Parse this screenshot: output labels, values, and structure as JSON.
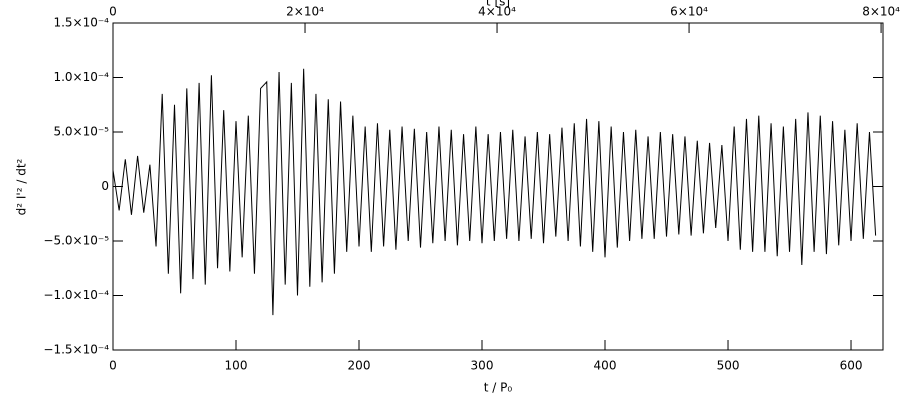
{
  "chart_data": {
    "type": "line",
    "color": "#000000",
    "x_label": "t / P₀",
    "y_label": "d² I'² / dt²",
    "x2_label": "t [s]",
    "xlim": [
      0,
      626
    ],
    "xticks": [
      0,
      100,
      200,
      300,
      400,
      500,
      600
    ],
    "x2lim": [
      0,
      80200
    ],
    "x2ticks": [
      0,
      {
        "value": 20000,
        "label": "2×10⁴"
      },
      {
        "value": 40000,
        "label": "4×10⁴"
      },
      {
        "value": 60000,
        "label": "6×10⁴"
      },
      {
        "value": 80000,
        "label": "8×10⁴"
      }
    ],
    "ylim": [
      -0.00015,
      0.00015
    ],
    "yticks": [
      {
        "value": -0.00015,
        "label": "−1.5×10⁻⁴"
      },
      {
        "value": -0.0001,
        "label": "−1.0×10⁻⁴"
      },
      {
        "value": -5e-05,
        "label": "−5.0×10⁻⁵"
      },
      0,
      {
        "value": 5e-05,
        "label": "5.0×10⁻⁵"
      },
      {
        "value": 0.0001,
        "label": "1.0×10⁻⁴"
      },
      {
        "value": 0.00015,
        "label": "1.5×10⁻⁴"
      }
    ],
    "x": [
      0,
      5,
      10,
      15,
      20,
      25,
      30,
      35,
      40,
      45,
      50,
      55,
      60,
      65,
      70,
      75,
      80,
      85,
      90,
      95,
      100,
      105,
      110,
      115,
      120,
      125,
      130,
      135,
      140,
      145,
      150,
      155,
      160,
      165,
      170,
      175,
      180,
      185,
      190,
      195,
      200,
      205,
      210,
      215,
      220,
      225,
      230,
      235,
      240,
      245,
      250,
      255,
      260,
      265,
      270,
      275,
      280,
      285,
      290,
      295,
      300,
      305,
      310,
      315,
      320,
      325,
      330,
      335,
      340,
      345,
      350,
      355,
      360,
      365,
      370,
      375,
      380,
      385,
      390,
      395,
      400,
      405,
      410,
      415,
      420,
      425,
      430,
      435,
      440,
      445,
      450,
      455,
      460,
      465,
      470,
      475,
      480,
      485,
      490,
      495,
      500,
      505,
      510,
      515,
      520,
      525,
      530,
      535,
      540,
      545,
      550,
      555,
      560,
      565,
      570,
      575,
      580,
      585,
      590,
      595,
      600,
      605,
      610,
      615,
      620
    ],
    "values": [
      1.5e-05,
      -2.2e-05,
      2.5e-05,
      -2.6e-05,
      2.8e-05,
      -2.4e-05,
      2e-05,
      -5.5e-05,
      8.5e-05,
      -8e-05,
      7.5e-05,
      -9.8e-05,
      9e-05,
      -8.5e-05,
      9.5e-05,
      -9e-05,
      0.000102,
      -7.5e-05,
      7e-05,
      -7.8e-05,
      6e-05,
      -6.5e-05,
      6.5e-05,
      -8e-05,
      9e-05,
      9.6e-05,
      -0.000118,
      0.000105,
      -9e-05,
      9.5e-05,
      -0.0001,
      0.000108,
      -9.2e-05,
      8.5e-05,
      -8.8e-05,
      8e-05,
      -8e-05,
      7.8e-05,
      -6e-05,
      6.5e-05,
      -5.5e-05,
      5.5e-05,
      -6e-05,
      5.8e-05,
      -5.5e-05,
      5.2e-05,
      -5.8e-05,
      5.5e-05,
      -5e-05,
      5.3e-05,
      -5.6e-05,
      5e-05,
      -5.2e-05,
      5.5e-05,
      -5e-05,
      5.2e-05,
      -5.4e-05,
      4.8e-05,
      -5e-05,
      5.5e-05,
      -5.2e-05,
      4.8e-05,
      -5e-05,
      5e-05,
      -4.8e-05,
      5.2e-05,
      -5e-05,
      4.6e-05,
      -4.8e-05,
      5e-05,
      -5.2e-05,
      4.8e-05,
      -4.6e-05,
      5.4e-05,
      -5e-05,
      5.8e-05,
      -5.5e-05,
      6.2e-05,
      -6e-05,
      6e-05,
      -6.5e-05,
      5.5e-05,
      -5.6e-05,
      5e-05,
      -5e-05,
      5.2e-05,
      -4.8e-05,
      4.6e-05,
      -4.8e-05,
      5e-05,
      -4.6e-05,
      4.8e-05,
      -4.4e-05,
      4.6e-05,
      -4.5e-05,
      4.2e-05,
      -4.3e-05,
      4e-05,
      -3.8e-05,
      3.8e-05,
      -5e-05,
      5.5e-05,
      -5.8e-05,
      6.2e-05,
      -6e-05,
      6.5e-05,
      -6e-05,
      5.8e-05,
      -6.4e-05,
      5.5e-05,
      -6e-05,
      6.2e-05,
      -7.2e-05,
      6.8e-05,
      -6e-05,
      6.5e-05,
      -6.2e-05,
      6e-05,
      -5.4e-05,
      5.2e-05,
      -5e-05,
      5.8e-05,
      -4.8e-05,
      5e-05,
      -4.5e-05
    ]
  }
}
